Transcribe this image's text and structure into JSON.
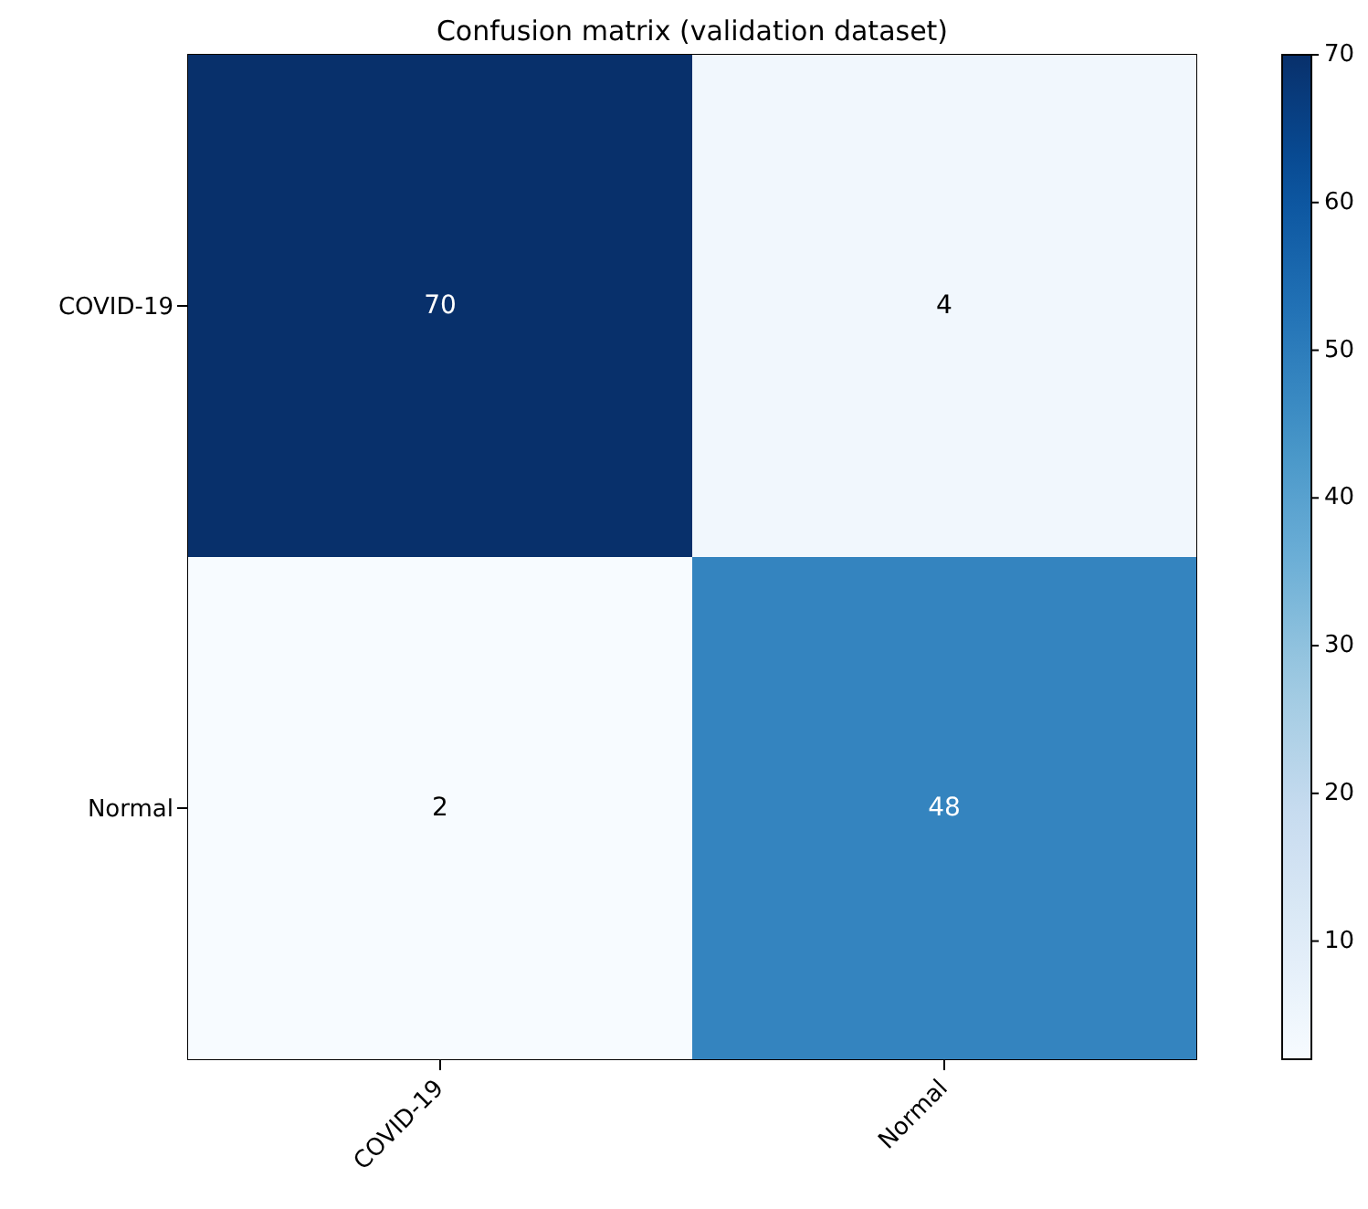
{
  "chart_data": {
    "type": "heatmap",
    "title": "Confusion matrix (validation dataset)",
    "categories": [
      "COVID-19",
      "Normal"
    ],
    "y_categories": [
      "COVID-19",
      "Normal"
    ],
    "cells": [
      [
        70,
        4
      ],
      [
        2,
        48
      ]
    ],
    "clim": [
      2,
      70
    ],
    "cticks": [
      10,
      20,
      30,
      40,
      50,
      60,
      70
    ],
    "data_labels": true
  }
}
